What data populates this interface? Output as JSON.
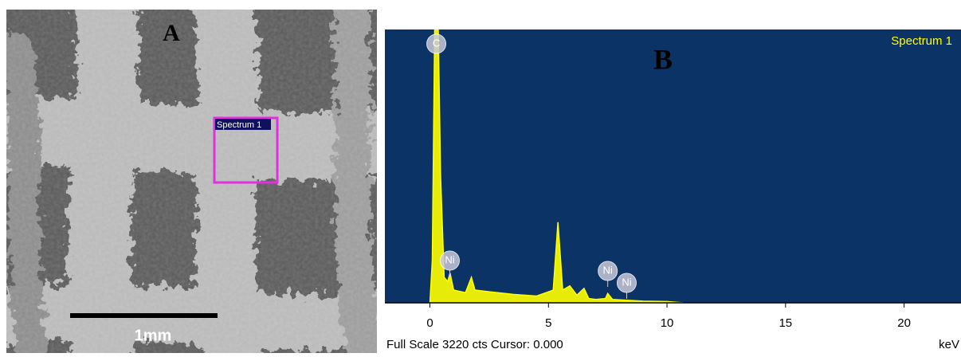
{
  "panel_a": {
    "label": "A",
    "scale_bar": "1mm",
    "region_label": "Spectrum 1"
  },
  "chart_data": {
    "type": "area",
    "title": "B",
    "spectrum_label": "Spectrum 1",
    "x": [
      0,
      0.1,
      0.2,
      0.28,
      0.35,
      0.45,
      0.6,
      0.75,
      0.85,
      1.0,
      1.5,
      1.75,
      1.9,
      2.5,
      3.5,
      4.5,
      5.2,
      5.4,
      5.6,
      5.9,
      6.2,
      6.5,
      6.7,
      7.0,
      7.4,
      7.5,
      7.7,
      8.3,
      9,
      10,
      10.7
    ],
    "values": [
      0,
      500,
      3220,
      3220,
      3220,
      1500,
      300,
      250,
      350,
      150,
      120,
      300,
      150,
      130,
      100,
      80,
      150,
      950,
      150,
      200,
      90,
      170,
      50,
      40,
      50,
      110,
      40,
      30,
      20,
      15,
      0
    ],
    "color": "#ffff00",
    "xlim": [
      -1.9,
      22.4
    ],
    "ylim": [
      0,
      3220
    ],
    "xticks": [
      0,
      5,
      10,
      15,
      20
    ],
    "xlabel": "keV",
    "footer": "Full Scale 3220 cts Cursor: 0.000",
    "peak_labels": [
      {
        "text": "C",
        "x": 0.27
      },
      {
        "text": "Ni",
        "x": 0.84
      },
      {
        "text": "Ni",
        "x": 7.5
      },
      {
        "text": "Ni",
        "x": 8.3
      }
    ]
  }
}
